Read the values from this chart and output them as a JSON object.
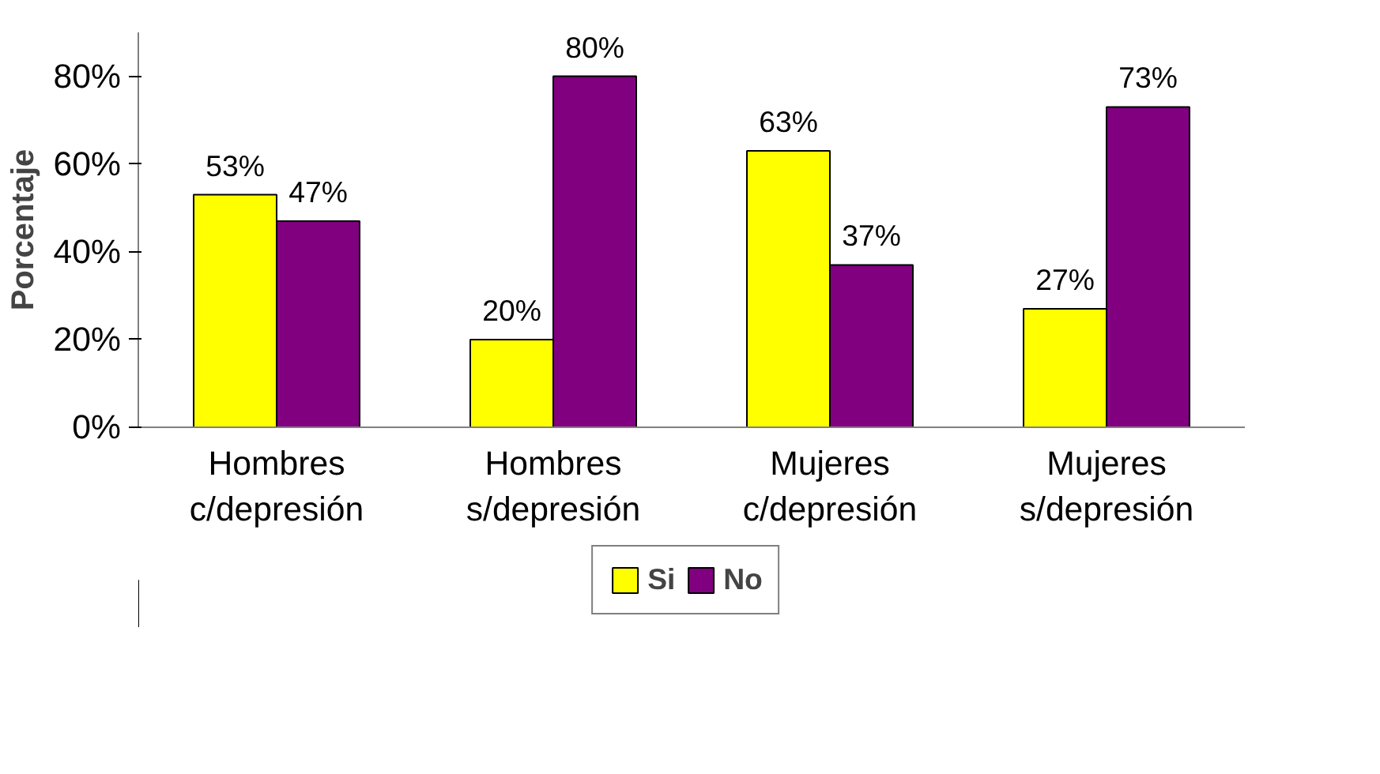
{
  "chart_data": {
    "type": "bar",
    "ylabel": "Porcentaje",
    "categories": [
      "Hombres\nc/depresión",
      "Hombres\ns/depresión",
      "Mujeres\nc/depresión",
      "Mujeres\ns/depresión"
    ],
    "series": [
      {
        "name": "Si",
        "color": "#ffff00",
        "values": [
          53,
          20,
          63,
          27
        ],
        "value_labels": [
          "53%",
          "20%",
          "63%",
          "27%"
        ]
      },
      {
        "name": "No",
        "color": "#800080",
        "values": [
          47,
          80,
          37,
          73
        ],
        "value_labels": [
          "47%",
          "80%",
          "37%",
          "73%"
        ]
      }
    ],
    "ylim": [
      0,
      90
    ],
    "yticks": [
      {
        "value": 0,
        "label": "0%"
      },
      {
        "value": 20,
        "label": "20%"
      },
      {
        "value": 40,
        "label": "40%"
      },
      {
        "value": 60,
        "label": "60%"
      },
      {
        "value": 80,
        "label": "80%"
      }
    ],
    "grid": false,
    "legend": "bottom"
  }
}
